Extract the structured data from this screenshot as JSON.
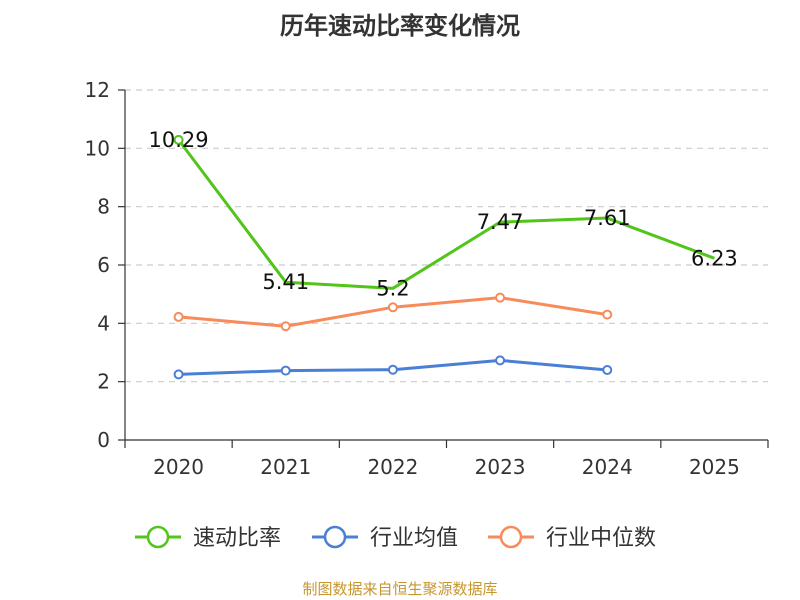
{
  "chart_data": {
    "type": "line",
    "title": "历年速动比率变化情况",
    "categories": [
      "2020",
      "2021",
      "2022",
      "2023",
      "2024",
      "2025"
    ],
    "ylim": [
      0,
      12
    ],
    "yticks": [
      0,
      2,
      4,
      6,
      8,
      10,
      12
    ],
    "grid": true,
    "legend_position": "bottom",
    "series": [
      {
        "name": "速动比率",
        "color": "#52c41a",
        "values": [
          10.29,
          5.41,
          5.2,
          7.47,
          7.61,
          6.23
        ],
        "labels": [
          "10.29",
          "5.41",
          "5.2",
          "7.47",
          "7.61",
          "6.23"
        ]
      },
      {
        "name": "行业均值",
        "color": "#4a7fd6",
        "values": [
          2.25,
          2.38,
          2.41,
          2.73,
          2.4,
          null
        ]
      },
      {
        "name": "行业中位数",
        "color": "#f78b5a",
        "values": [
          4.22,
          3.9,
          4.55,
          4.88,
          4.3,
          null
        ]
      }
    ]
  },
  "source_text": "制图数据来自恒生聚源数据库",
  "source_color": "#c8962e"
}
